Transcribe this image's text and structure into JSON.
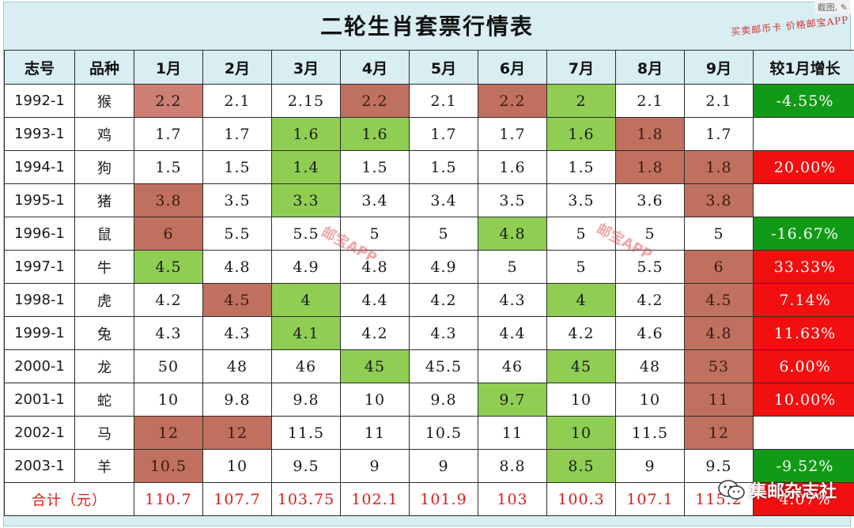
{
  "title": "二轮生肖套票行情表",
  "corner_tag": "截图, ✎",
  "handwritten_note": "买卖邮币卡 价格邮宝APP",
  "watermarks": [
    "邮宝APP",
    "邮宝APP"
  ],
  "wechat_label": "集邮杂志社",
  "headers": [
    "志号",
    "品种",
    "1月",
    "2月",
    "3月",
    "4月",
    "5月",
    "6月",
    "7月",
    "8月",
    "9月",
    "较1月增长"
  ],
  "rows": [
    {
      "code": "1992-1",
      "kind": "猴",
      "values": [
        "2.2",
        "2.1",
        "2.15",
        "2.2",
        "2.1",
        "2.2",
        "2",
        "2.1",
        "2.1"
      ],
      "growth": "-4.55%"
    },
    {
      "code": "1993-1",
      "kind": "鸡",
      "values": [
        "1.7",
        "1.7",
        "1.6",
        "1.6",
        "1.7",
        "1.7",
        "1.6",
        "1.8",
        "1.7"
      ],
      "growth": ""
    },
    {
      "code": "1994-1",
      "kind": "狗",
      "values": [
        "1.5",
        "1.5",
        "1.4",
        "1.5",
        "1.5",
        "1.6",
        "1.5",
        "1.8",
        "1.8"
      ],
      "growth": "20.00%"
    },
    {
      "code": "1995-1",
      "kind": "猪",
      "values": [
        "3.8",
        "3.5",
        "3.3",
        "3.4",
        "3.4",
        "3.5",
        "3.5",
        "3.6",
        "3.8"
      ],
      "growth": ""
    },
    {
      "code": "1996-1",
      "kind": "鼠",
      "values": [
        "6",
        "5.5",
        "5.5",
        "5",
        "5",
        "4.8",
        "5",
        "5",
        "5"
      ],
      "growth": "-16.67%"
    },
    {
      "code": "1997-1",
      "kind": "牛",
      "values": [
        "4.5",
        "4.8",
        "4.9",
        "4.8",
        "4.9",
        "5",
        "5",
        "5.5",
        "6"
      ],
      "growth": "33.33%"
    },
    {
      "code": "1998-1",
      "kind": "虎",
      "values": [
        "4.2",
        "4.5",
        "4",
        "4.4",
        "4.2",
        "4.3",
        "4",
        "4.2",
        "4.5"
      ],
      "growth": "7.14%"
    },
    {
      "code": "1999-1",
      "kind": "兔",
      "values": [
        "4.3",
        "4.3",
        "4.1",
        "4.2",
        "4.3",
        "4.4",
        "4.2",
        "4.6",
        "4.8"
      ],
      "growth": "11.63%"
    },
    {
      "code": "2000-1",
      "kind": "龙",
      "values": [
        "50",
        "48",
        "46",
        "45",
        "45.5",
        "46",
        "45",
        "48",
        "53"
      ],
      "growth": "6.00%"
    },
    {
      "code": "2001-1",
      "kind": "蛇",
      "values": [
        "10",
        "9.8",
        "9.8",
        "10",
        "9.8",
        "9.7",
        "10",
        "10",
        "11"
      ],
      "growth": "10.00%"
    },
    {
      "code": "2002-1",
      "kind": "马",
      "values": [
        "12",
        "12",
        "11.5",
        "11",
        "10.5",
        "11",
        "10",
        "11.5",
        "12"
      ],
      "growth": ""
    },
    {
      "code": "2003-1",
      "kind": "羊",
      "values": [
        "10.5",
        "10",
        "9.5",
        "9",
        "9",
        "8.8",
        "8.5",
        "9",
        "9.5"
      ],
      "growth": "-9.52%"
    }
  ],
  "total": {
    "label": "合计（元）",
    "values": [
      "110.7",
      "107.7",
      "103.75",
      "102.1",
      "101.9",
      "103",
      "100.3",
      "107.1",
      "115.2"
    ],
    "growth": "4.07%"
  },
  "colors": {
    "high": "#c0705e",
    "low": "#8fce52",
    "growth_up": "#f20f0f",
    "growth_down": "#119a16",
    "header_bg": "#d8eef3",
    "total_text": "#e11818"
  },
  "highlights": [
    [
      "pink",
      "",
      "",
      "red",
      "",
      "red",
      "green",
      "",
      ""
    ],
    [
      "",
      "",
      "green",
      "green",
      "",
      "",
      "green",
      "red",
      ""
    ],
    [
      "",
      "",
      "green",
      "",
      "",
      "",
      "",
      "red",
      "red"
    ],
    [
      "red",
      "",
      "green",
      "",
      "",
      "",
      "",
      "",
      "red"
    ],
    [
      "red",
      "",
      "",
      "",
      "",
      "green",
      "",
      "",
      ""
    ],
    [
      "green",
      "",
      "",
      "",
      "",
      "",
      "",
      "",
      "red"
    ],
    [
      "",
      "red",
      "green",
      "",
      "",
      "",
      "green",
      "",
      "red"
    ],
    [
      "",
      "",
      "green",
      "",
      "",
      "",
      "",
      "",
      "red"
    ],
    [
      "",
      "",
      "",
      "green",
      "",
      "",
      "green",
      "",
      "red"
    ],
    [
      "",
      "",
      "",
      "",
      "",
      "green",
      "",
      "",
      "red"
    ],
    [
      "red",
      "red",
      "",
      "",
      "",
      "",
      "green",
      "",
      "red"
    ],
    [
      "red",
      "",
      "",
      "",
      "",
      "",
      "green",
      "",
      ""
    ]
  ],
  "growth_colors": [
    "gr-green",
    "",
    "gr-red",
    "",
    "gr-green",
    "gr-red",
    "gr-red",
    "gr-red",
    "gr-red",
    "gr-red",
    "",
    "gr-green"
  ],
  "total_growth_color": "gr-red"
}
